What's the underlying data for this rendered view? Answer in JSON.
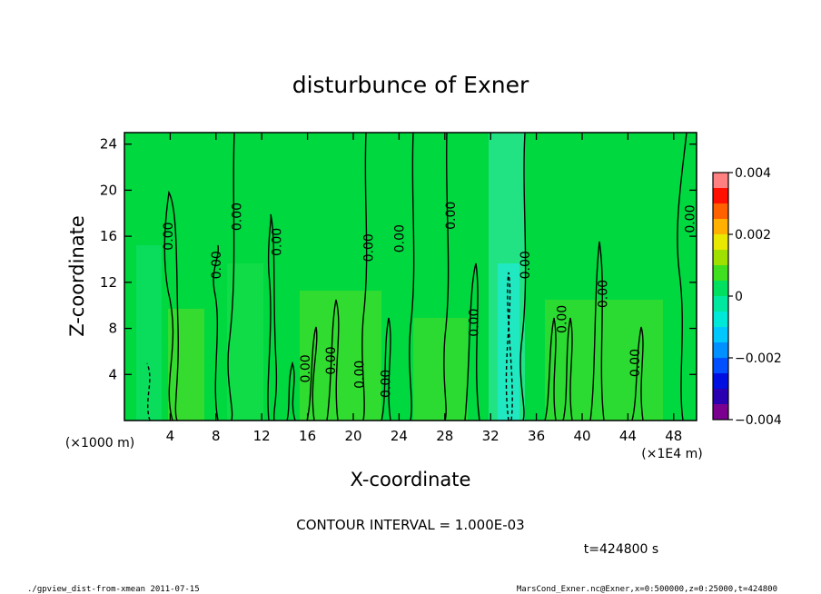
{
  "chart_data": {
    "type": "heatmap",
    "title": "disturbunce of Exner",
    "xlabel": "X-coordinate",
    "ylabel": "Z-coordinate",
    "x_unit_left": "(×1000 m)",
    "x_unit_right": "(×1E4 m)",
    "xlim": [
      0,
      50
    ],
    "ylim": [
      0,
      25
    ],
    "x_ticks": [
      4,
      8,
      12,
      16,
      20,
      24,
      28,
      32,
      36,
      40,
      44,
      48
    ],
    "y_ticks": [
      4,
      8,
      12,
      16,
      20,
      24
    ],
    "x_tick_labels": [
      "4",
      "8",
      "12",
      "16",
      "20",
      "24",
      "28",
      "32",
      "36",
      "40",
      "44",
      "48"
    ],
    "y_tick_labels": [
      "4",
      "8",
      "12",
      "16",
      "20",
      "24"
    ],
    "colorbar": {
      "levels": [
        -0.004,
        -0.0035,
        -0.003,
        -0.0025,
        -0.002,
        -0.0015,
        -0.001,
        -0.0005,
        0,
        0.0005,
        0.001,
        0.0015,
        0.002,
        0.0025,
        0.003,
        0.0035,
        0.004
      ],
      "colors": [
        "#7a008f",
        "#2a00b0",
        "#0010e0",
        "#0050ff",
        "#0090ff",
        "#00c8ff",
        "#00e8d8",
        "#00e8a0",
        "#00e060",
        "#40e020",
        "#a0e000",
        "#e8e800",
        "#ffb000",
        "#ff6000",
        "#ff1000",
        "#ff8080"
      ],
      "tick_labels": [
        "0.004",
        "0.002",
        "0",
        "−0.002",
        "−0.004"
      ],
      "tick_values": [
        0.004,
        0.002,
        0,
        -0.002,
        -0.004
      ]
    },
    "contour_label": "0.00",
    "contour_labels": [
      {
        "x": 3.8,
        "y": 16.0
      },
      {
        "x": 8.0,
        "y": 13.5
      },
      {
        "x": 9.8,
        "y": 17.7
      },
      {
        "x": 13.3,
        "y": 15.5
      },
      {
        "x": 15.8,
        "y": 4.5
      },
      {
        "x": 18.0,
        "y": 5.2
      },
      {
        "x": 20.5,
        "y": 4.0
      },
      {
        "x": 21.3,
        "y": 15.0
      },
      {
        "x": 22.8,
        "y": 3.2
      },
      {
        "x": 24.0,
        "y": 15.8
      },
      {
        "x": 28.5,
        "y": 17.8
      },
      {
        "x": 30.5,
        "y": 8.5
      },
      {
        "x": 35.0,
        "y": 13.5
      },
      {
        "x": 38.2,
        "y": 8.8
      },
      {
        "x": 41.8,
        "y": 11.0
      },
      {
        "x": 44.6,
        "y": 5.0
      },
      {
        "x": 49.4,
        "y": 17.5
      }
    ],
    "contour_interval_text": "CONTOUR INTERVAL = 1.000E-03",
    "time_text": "t=424800 s"
  },
  "footer": {
    "left": "./gpview_dist-from-xmean  2011-07-15",
    "right": "MarsCond_Exner.nc@Exner,x=0:500000,z=0:25000,t=424800"
  }
}
